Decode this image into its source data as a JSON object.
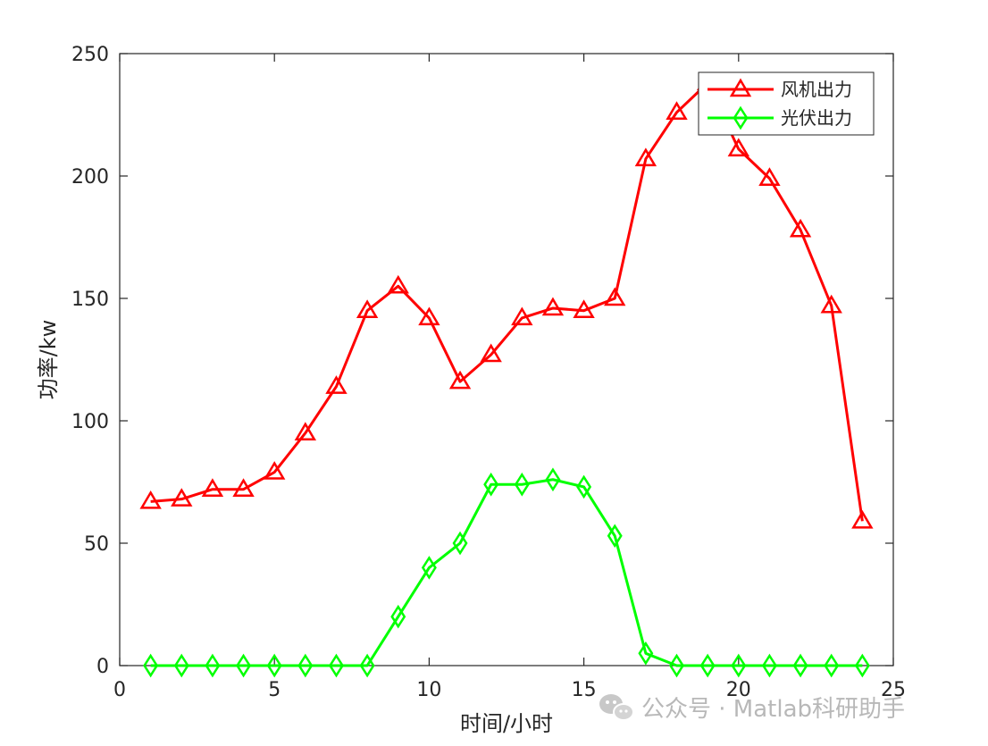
{
  "chart_data": {
    "type": "line",
    "xlabel": "时间/小时",
    "ylabel": "功率/kw",
    "xlim": [
      0,
      25
    ],
    "ylim": [
      0,
      250
    ],
    "xticks": [
      0,
      5,
      10,
      15,
      20,
      25
    ],
    "yticks": [
      0,
      50,
      100,
      150,
      200,
      250
    ],
    "grid": false,
    "legend_position": "top-right",
    "x": [
      1,
      2,
      3,
      4,
      5,
      6,
      7,
      8,
      9,
      10,
      11,
      12,
      13,
      14,
      15,
      16,
      17,
      18,
      19,
      20,
      21,
      22,
      23,
      24
    ],
    "series": [
      {
        "name": "风机出力",
        "color": "#ff0000",
        "marker": "triangle",
        "values": [
          67,
          68,
          72,
          72,
          79,
          95,
          114,
          145,
          155,
          142,
          116,
          127,
          142,
          146,
          145,
          150,
          207,
          226,
          238,
          211,
          199,
          178,
          147,
          59
        ]
      },
      {
        "name": "光伏出力",
        "color": "#00ff00",
        "marker": "diamond",
        "values": [
          0,
          0,
          0,
          0,
          0,
          0,
          0,
          0,
          20,
          40,
          50,
          74,
          74,
          76,
          73,
          53,
          5,
          0,
          0,
          0,
          0,
          0,
          0,
          0
        ]
      }
    ]
  },
  "watermark": {
    "text": "公众号 · Matlab科研助手",
    "icon": "wechat-icon"
  }
}
